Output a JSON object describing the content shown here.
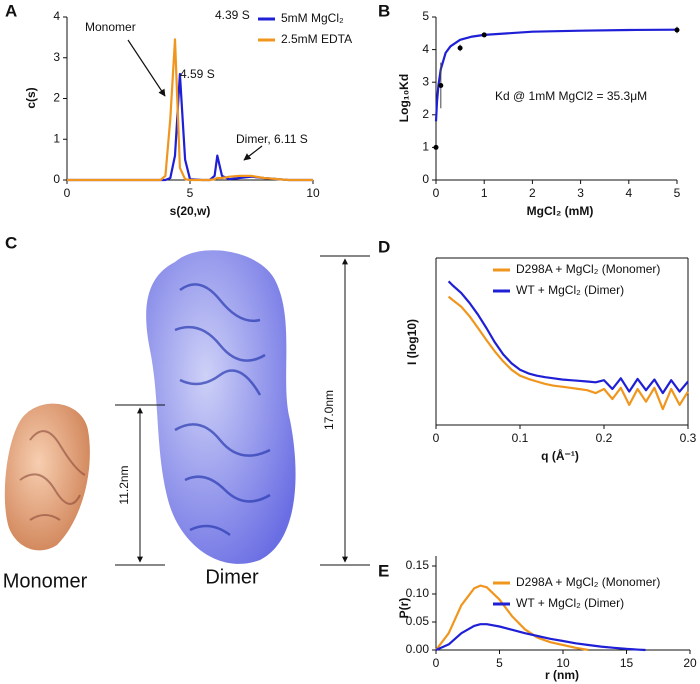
{
  "chart_data": [
    {
      "type": "line",
      "panel": "A",
      "xlabel": "s(20,w)",
      "ylabel": "c(s)",
      "xlim": [
        0,
        10
      ],
      "xticks": [
        0,
        5,
        10
      ],
      "ylim": [
        0,
        4
      ],
      "yticks": [
        0,
        1,
        2,
        3,
        4
      ],
      "x": [
        0,
        1,
        2,
        3,
        3.8,
        4.0,
        4.2,
        4.39,
        4.59,
        4.8,
        5.0,
        5.5,
        5.8,
        6.0,
        6.11,
        6.3,
        6.6,
        7.0,
        7.5,
        8,
        9,
        10
      ],
      "series": [
        {
          "name": "5mM MgCl₂",
          "color": "#1f1fd6",
          "values": [
            0,
            0,
            0,
            0,
            0,
            0,
            0.05,
            0.6,
            2.6,
            0.5,
            0.02,
            0,
            0,
            0.1,
            0.6,
            0.1,
            0.02,
            0.05,
            0.08,
            0.05,
            0,
            0
          ]
        },
        {
          "name": "2.5mM EDTA",
          "color": "#f0961e",
          "values": [
            0,
            0,
            0,
            0,
            0,
            0.1,
            1.5,
            3.45,
            0.3,
            0.02,
            0,
            0,
            0,
            0.02,
            0.05,
            0.05,
            0.08,
            0.1,
            0.1,
            0.05,
            0,
            0
          ]
        }
      ],
      "annotations": [
        "Monomer",
        "4.39 S",
        "4.59 S",
        "Dimer, 6.11 S"
      ]
    },
    {
      "type": "scatter",
      "panel": "B",
      "xlabel": "MgCl₂ (mM)",
      "ylabel": "Log₁₀Kd",
      "xlim": [
        0,
        5
      ],
      "xticks": [
        0,
        1,
        2,
        3,
        4,
        5
      ],
      "ylim": [
        0,
        5
      ],
      "yticks": [
        0,
        1,
        2,
        3,
        4,
        5
      ],
      "series": [
        {
          "type": "line",
          "color": "#1f1fd6",
          "x": [
            0,
            0.02,
            0.05,
            0.1,
            0.2,
            0.3,
            0.5,
            0.75,
            1,
            2,
            3,
            4,
            5
          ],
          "values": [
            1.8,
            2.4,
            2.9,
            3.4,
            3.9,
            4.1,
            4.3,
            4.4,
            4.45,
            4.55,
            4.58,
            4.6,
            4.61
          ]
        },
        {
          "type": "scatter",
          "color": "#000000",
          "x": [
            0,
            0.1,
            0.5,
            1,
            5
          ],
          "values": [
            1.0,
            2.9,
            4.05,
            4.45,
            4.6
          ],
          "errors": [
            0,
            0.7,
            0.1,
            0.05,
            0.1
          ]
        }
      ],
      "annotations": [
        "Kd @ 1mM MgCl2 = 35.3μM"
      ]
    },
    {
      "type": "line",
      "panel": "D",
      "xlabel": "q (Å⁻¹)",
      "ylabel": "I (log10)",
      "ylog": true,
      "xlim": [
        0,
        0.3
      ],
      "xticks": [
        0,
        0.1,
        0.2,
        0.3
      ],
      "ylim": [
        0.0001,
        10
      ],
      "x": [
        0.015,
        0.02,
        0.03,
        0.04,
        0.05,
        0.06,
        0.07,
        0.08,
        0.09,
        0.1,
        0.11,
        0.12,
        0.13,
        0.14,
        0.15,
        0.16,
        0.17,
        0.18,
        0.19,
        0.2,
        0.21,
        0.22,
        0.23,
        0.24,
        0.25,
        0.26,
        0.27,
        0.28,
        0.29,
        0.3
      ],
      "series": [
        {
          "name": "D298A + MgCl₂ (Monomer)",
          "color": "#f0961e",
          "values": [
            0.7,
            0.55,
            0.35,
            0.18,
            0.08,
            0.035,
            0.016,
            0.008,
            0.0045,
            0.003,
            0.0024,
            0.002,
            0.0017,
            0.0015,
            0.0014,
            0.0013,
            0.0012,
            0.0011,
            0.0009,
            0.0012,
            0.0006,
            0.0013,
            0.0004,
            0.0012,
            0.0005,
            0.0013,
            0.0003,
            0.0012,
            0.0004,
            0.001
          ]
        },
        {
          "name": "WT + MgCl₂ (Dimer)",
          "color": "#1f1fd6",
          "values": [
            2.0,
            1.5,
            0.9,
            0.45,
            0.2,
            0.08,
            0.03,
            0.013,
            0.007,
            0.0045,
            0.0035,
            0.003,
            0.0027,
            0.0025,
            0.0023,
            0.0022,
            0.0021,
            0.002,
            0.0019,
            0.0022,
            0.0012,
            0.0025,
            0.001,
            0.0024,
            0.0011,
            0.0023,
            0.0009,
            0.0022,
            0.001,
            0.002
          ]
        }
      ]
    },
    {
      "type": "line",
      "panel": "E",
      "xlabel": "r (nm)",
      "ylabel": "P(r)",
      "xlim": [
        0,
        20
      ],
      "xticks": [
        0,
        5,
        10,
        15,
        20
      ],
      "ylim": [
        0,
        0.15
      ],
      "yticks": [
        {
          "value": 0,
          "label": "0.00"
        },
        0.05,
        {
          "value": 0.1,
          "label": "0.10"
        },
        0.15
      ],
      "x": [
        0,
        1,
        2,
        3,
        3.5,
        4,
        5,
        6,
        7,
        8,
        9,
        10,
        11,
        12,
        13,
        14,
        15,
        16,
        16.5
      ],
      "series": [
        {
          "name": "D298A + MgCl₂ (Monomer)",
          "color": "#f0961e",
          "values": [
            0,
            0.03,
            0.08,
            0.11,
            0.115,
            0.112,
            0.09,
            0.06,
            0.037,
            0.022,
            0.014,
            0.009,
            0.004,
            0,
            null,
            null,
            null,
            null,
            null
          ]
        },
        {
          "name": "WT + MgCl₂ (Dimer)",
          "color": "#1f1fd6",
          "values": [
            0,
            0.01,
            0.03,
            0.043,
            0.046,
            0.046,
            0.042,
            0.036,
            0.03,
            0.025,
            0.02,
            0.016,
            0.012,
            0.009,
            0.006,
            0.004,
            0.002,
            0.0005,
            0
          ]
        }
      ]
    }
  ],
  "illustration": {
    "panel": "C",
    "labels": [
      "Monomer",
      "Dimer"
    ],
    "dimensions": [
      "11.2nm",
      "17.0nm"
    ]
  }
}
